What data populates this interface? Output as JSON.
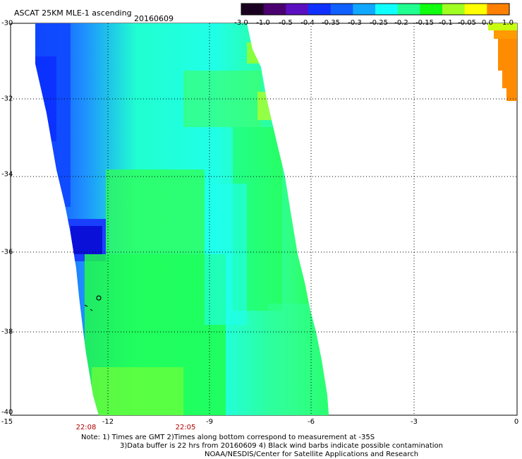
{
  "header": {
    "title": "ASCAT 25KM MLE-1 ascending",
    "date": "20160609"
  },
  "colorbar": {
    "labels": [
      "-3.0",
      "-1.0",
      "-0.5",
      "-0.4",
      "-0.35",
      "-0.3",
      "-0.25",
      "-0.2",
      "-0.15",
      "-0.1",
      "-0.05",
      "0.0",
      "1.0"
    ],
    "colors": [
      "#1a0020",
      "#4b0070",
      "#5a10c0",
      "#1030ff",
      "#1060ff",
      "#10a8ff",
      "#10ffff",
      "#20ff90",
      "#10ff10",
      "#a0ff20",
      "#ffff00",
      "#ff8000",
      "#ff1010"
    ]
  },
  "axes": {
    "lat_labels": [
      "-30",
      "-32",
      "-34",
      "-36",
      "-38",
      "-40"
    ],
    "lon_labels": [
      "-15",
      "-12",
      "-9",
      "-6",
      "-3",
      "0"
    ],
    "time_labels": [
      "22:08",
      "22:05"
    ]
  },
  "notes": {
    "line1": "Note: 1) Times are GMT 2)Times along bottom correspond to measurement at -35S",
    "line2": "3)Data buffer is 22 hrs from 20160609 4) Black wind barbs indicate possible contamination",
    "line3": "NOAA/NESDIS/Center for Satellite Applications and Research"
  }
}
